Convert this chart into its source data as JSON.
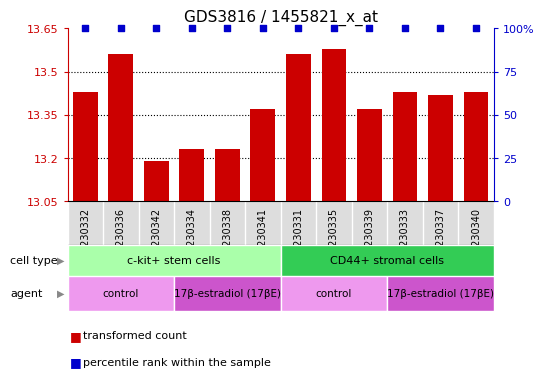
{
  "title": "GDS3816 / 1455821_x_at",
  "samples": [
    "GSM230332",
    "GSM230336",
    "GSM230342",
    "GSM230334",
    "GSM230338",
    "GSM230341",
    "GSM230331",
    "GSM230335",
    "GSM230339",
    "GSM230333",
    "GSM230337",
    "GSM230340"
  ],
  "values": [
    13.43,
    13.56,
    13.19,
    13.23,
    13.23,
    13.37,
    13.56,
    13.58,
    13.37,
    13.43,
    13.42,
    13.43
  ],
  "percentile": [
    100,
    100,
    100,
    100,
    100,
    100,
    100,
    100,
    100,
    100,
    100,
    100
  ],
  "ylim": [
    13.05,
    13.65
  ],
  "yticks": [
    13.05,
    13.2,
    13.35,
    13.5,
    13.65
  ],
  "ytick_labels": [
    "13.05",
    "13.2",
    "13.35",
    "13.5",
    "13.65"
  ],
  "right_yticks": [
    0,
    25,
    50,
    75,
    100
  ],
  "right_ytick_labels": [
    "0",
    "25",
    "50",
    "75",
    "100%"
  ],
  "bar_color": "#cc0000",
  "dot_color": "#0000cc",
  "cell_type_groups": [
    {
      "label": "c-kit+ stem cells",
      "start": 0,
      "end": 6,
      "color": "#aaffaa"
    },
    {
      "label": "CD44+ stromal cells",
      "start": 6,
      "end": 12,
      "color": "#33cc55"
    }
  ],
  "agent_groups": [
    {
      "label": "control",
      "start": 0,
      "end": 3,
      "color": "#ee99ee"
    },
    {
      "label": "17β-estradiol (17βE)",
      "start": 3,
      "end": 6,
      "color": "#cc55cc"
    },
    {
      "label": "control",
      "start": 6,
      "end": 9,
      "color": "#ee99ee"
    },
    {
      "label": "17β-estradiol (17βE)",
      "start": 9,
      "end": 12,
      "color": "#cc55cc"
    }
  ],
  "title_fontsize": 11,
  "tick_fontsize": 8,
  "sample_fontsize": 7
}
